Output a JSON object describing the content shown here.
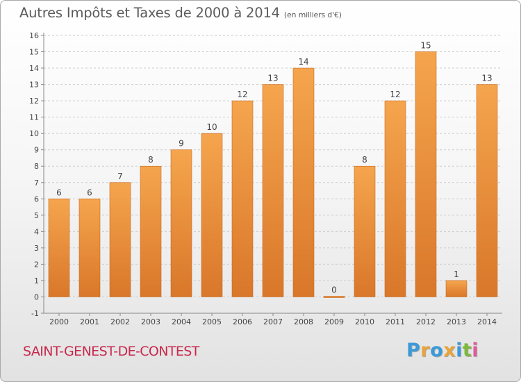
{
  "title": {
    "main": "Autres Impôts et Taxes de 2000 à 2014",
    "unit": "(en milliers d'€)"
  },
  "place": "SAINT-GENEST-DE-CONTEST",
  "logo": {
    "text": "Proxiti",
    "letters": [
      "P",
      "r",
      "o",
      "x",
      "i",
      "t",
      "i"
    ],
    "colors": [
      "#3a9ad9",
      "#e8a33a",
      "#3a9ad9",
      "#e8a33a",
      "#3a9ad9",
      "#7db83a",
      "#e05a9a"
    ]
  },
  "colors": {
    "bar_light": "#f5a54d",
    "bar_dark": "#d9772a",
    "axis": "#888888",
    "grid": "#cccccc",
    "text": "#444444"
  },
  "chart_data": {
    "type": "bar",
    "categories": [
      "2000",
      "2001",
      "2002",
      "2003",
      "2004",
      "2005",
      "2006",
      "2007",
      "2008",
      "2009",
      "2010",
      "2011",
      "2012",
      "2013",
      "2014"
    ],
    "values": [
      6,
      6,
      7,
      8,
      9,
      10,
      12,
      13,
      14,
      0,
      8,
      12,
      15,
      1,
      13
    ],
    "ylim": [
      -1,
      16
    ],
    "yticks": [
      -1,
      0,
      1,
      2,
      3,
      4,
      5,
      6,
      7,
      8,
      9,
      10,
      11,
      12,
      13,
      14,
      15,
      16
    ],
    "xlabel": "",
    "ylabel": "",
    "grid": true
  }
}
